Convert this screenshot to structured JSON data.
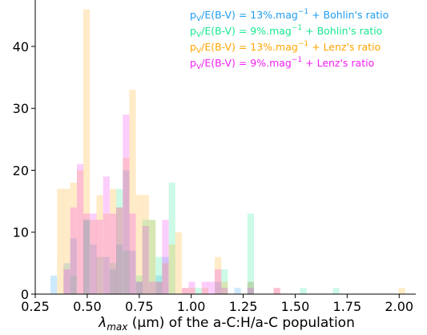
{
  "chart_data": {
    "type": "bar",
    "xlabel_parts": {
      "lambda": "λ",
      "sub": "max",
      "rest": " (μm) of the a-C:H/a-C population"
    },
    "ylabel": "",
    "xlim": [
      0.25,
      2.08
    ],
    "ylim": [
      0,
      47.5
    ],
    "x_ticks": [
      0.25,
      0.5,
      0.75,
      1.0,
      1.25,
      1.5,
      1.75,
      2.0
    ],
    "x_tick_labels": [
      "0.25",
      "0.50",
      "0.75",
      "1.00",
      "1.25",
      "1.50",
      "1.75",
      "2.00"
    ],
    "y_ticks": [
      0,
      10,
      20,
      30,
      40
    ],
    "y_tick_labels": [
      "0",
      "10",
      "20",
      "30",
      "40"
    ],
    "grid": false,
    "legend_position": "top-right",
    "bin_width": 0.0316,
    "series": [
      {
        "name": "p_V/E(B-V) = 13%.mag^-1 + Bohlin's ratio",
        "name_parts": {
          "p": "p",
          "sub": "V",
          "mid": "/E(B-V) = 13%.mag",
          "sup": "−1",
          "tail": " + Bohlin's ratio"
        },
        "color": "#1f9cf0",
        "alpha": 0.22,
        "bins": [
          {
            "x": 0.339,
            "y": 3
          },
          {
            "x": 0.402,
            "y": 5
          },
          {
            "x": 0.434,
            "y": 9
          },
          {
            "x": 0.497,
            "y": 12
          },
          {
            "x": 0.529,
            "y": 8
          },
          {
            "x": 0.592,
            "y": 6
          },
          {
            "x": 0.624,
            "y": 4
          },
          {
            "x": 0.655,
            "y": 8
          },
          {
            "x": 0.687,
            "y": 20
          },
          {
            "x": 0.718,
            "y": 7
          },
          {
            "x": 0.75,
            "y": 2
          },
          {
            "x": 0.845,
            "y": 3
          },
          {
            "x": 0.876,
            "y": 6
          },
          {
            "x": 1.129,
            "y": 2
          },
          {
            "x": 1.223,
            "y": 1
          },
          {
            "x": 1.286,
            "y": 2
          }
        ]
      },
      {
        "name": "p_V/E(B-V) = 9%.mag^-1 + Bohlin's ratio",
        "name_parts": {
          "p": "p",
          "sub": "V",
          "mid": "/E(B-V) = 9%.mag",
          "sup": "−1",
          "tail": " + Bohlin's ratio"
        },
        "color": "#17e890",
        "alpha": 0.22,
        "bins": [
          {
            "x": 0.434,
            "y": 3
          },
          {
            "x": 0.497,
            "y": 12
          },
          {
            "x": 0.56,
            "y": 6
          },
          {
            "x": 0.624,
            "y": 5
          },
          {
            "x": 0.655,
            "y": 17
          },
          {
            "x": 0.687,
            "y": 7
          },
          {
            "x": 0.75,
            "y": 3
          },
          {
            "x": 0.781,
            "y": 12
          },
          {
            "x": 0.813,
            "y": 12
          },
          {
            "x": 0.845,
            "y": 6
          },
          {
            "x": 0.908,
            "y": 18
          },
          {
            "x": 1.034,
            "y": 1
          },
          {
            "x": 1.16,
            "y": 4
          },
          {
            "x": 1.286,
            "y": 13
          },
          {
            "x": 1.539,
            "y": 1
          },
          {
            "x": 1.697,
            "y": 1
          }
        ]
      },
      {
        "name": "p_V/E(B-V) = 13%.mag^-1 + Lenz's ratio",
        "name_parts": {
          "p": "p",
          "sub": "V",
          "mid": "/E(B-V) = 13%.mag",
          "sup": "−1",
          "tail": " + Lenz's ratio"
        },
        "color": "#ffa500",
        "alpha": 0.22,
        "bins": [
          {
            "x": 0.371,
            "y": 17
          },
          {
            "x": 0.402,
            "y": 17
          },
          {
            "x": 0.434,
            "y": 18
          },
          {
            "x": 0.466,
            "y": 20
          },
          {
            "x": 0.497,
            "y": 46
          },
          {
            "x": 0.529,
            "y": 12
          },
          {
            "x": 0.56,
            "y": 16
          },
          {
            "x": 0.592,
            "y": 13
          },
          {
            "x": 0.624,
            "y": 17
          },
          {
            "x": 0.655,
            "y": 14
          },
          {
            "x": 0.687,
            "y": 22
          },
          {
            "x": 0.718,
            "y": 33
          },
          {
            "x": 0.75,
            "y": 16
          },
          {
            "x": 0.781,
            "y": 16
          },
          {
            "x": 0.813,
            "y": 12
          },
          {
            "x": 0.845,
            "y": 2
          },
          {
            "x": 0.876,
            "y": 5
          },
          {
            "x": 0.908,
            "y": 8
          },
          {
            "x": 0.939,
            "y": 10
          },
          {
            "x": 0.971,
            "y": 1
          },
          {
            "x": 1.003,
            "y": 1
          },
          {
            "x": 1.066,
            "y": 1
          },
          {
            "x": 1.129,
            "y": 6
          },
          {
            "x": 1.16,
            "y": 2
          },
          {
            "x": 1.286,
            "y": 2
          },
          {
            "x": 1.412,
            "y": 1
          },
          {
            "x": 2.013,
            "y": 1
          }
        ]
      },
      {
        "name": "p_V/E(B-V) = 9%.mag^-1 + Lenz's ratio",
        "name_parts": {
          "p": "p",
          "sub": "V",
          "mid": "/E(B-V) = 9%.mag",
          "sup": "−1",
          "tail": " + Lenz's ratio"
        },
        "color": "#f020f0",
        "alpha": 0.22,
        "bins": [
          {
            "x": 0.402,
            "y": 4
          },
          {
            "x": 0.434,
            "y": 14
          },
          {
            "x": 0.466,
            "y": 21
          },
          {
            "x": 0.497,
            "y": 13
          },
          {
            "x": 0.529,
            "y": 13
          },
          {
            "x": 0.56,
            "y": 12
          },
          {
            "x": 0.592,
            "y": 19
          },
          {
            "x": 0.624,
            "y": 13
          },
          {
            "x": 0.655,
            "y": 14
          },
          {
            "x": 0.687,
            "y": 29
          },
          {
            "x": 0.718,
            "y": 13
          },
          {
            "x": 0.75,
            "y": 2
          },
          {
            "x": 0.781,
            "y": 11
          },
          {
            "x": 0.813,
            "y": 2
          },
          {
            "x": 0.845,
            "y": 2
          },
          {
            "x": 0.876,
            "y": 12
          },
          {
            "x": 0.971,
            "y": 1
          },
          {
            "x": 1.003,
            "y": 2
          },
          {
            "x": 1.066,
            "y": 2
          },
          {
            "x": 1.097,
            "y": 2
          },
          {
            "x": 1.129,
            "y": 4
          },
          {
            "x": 1.16,
            "y": 1
          },
          {
            "x": 1.286,
            "y": 1
          },
          {
            "x": 1.412,
            "y": 1
          }
        ]
      }
    ]
  }
}
